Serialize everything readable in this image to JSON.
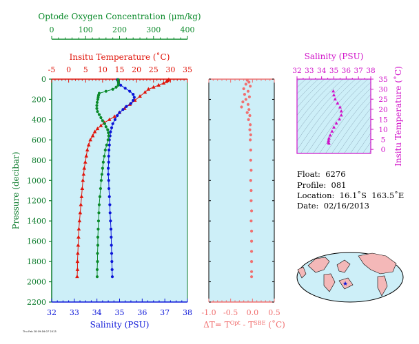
{
  "colors": {
    "oxygen": "#0a8a2a",
    "temperature": "#e0140a",
    "salinity": "#0a14d8",
    "delta": "#f07070",
    "pressure_axis": "#0a7a2a",
    "sal_panel": "#d010c8",
    "panel_bg": "#cdeff8"
  },
  "stamp": "Thu Feb 28 09:16:07 2013",
  "info": {
    "float": "Float:  6276",
    "profile": "Profile:  081",
    "location": "Location:  16.1˚S  163.5˚E",
    "date": "Date:  02/16/2013"
  },
  "chart_data": [
    {
      "type": "line",
      "panel": "main-profile",
      "y_axis": {
        "label": "Pressure (decibar)",
        "range": [
          2200,
          0
        ],
        "ticks": [
          0,
          200,
          400,
          600,
          800,
          1000,
          1200,
          1400,
          1600,
          1800,
          2000,
          2200
        ]
      },
      "oxygen_axis": {
        "label": "Optode Oxygen Concentration (μm/kg)",
        "range": [
          0,
          400
        ],
        "ticks": [
          0,
          100,
          200,
          300,
          400
        ]
      },
      "temperature_axis": {
        "label": "Insitu Temperature (˚C)",
        "range": [
          -5,
          35
        ],
        "ticks": [
          -5,
          0,
          5,
          10,
          15,
          20,
          25,
          30,
          35
        ]
      },
      "salinity_axis": {
        "label": "Salinity (PSU)",
        "range": [
          32,
          38
        ],
        "ticks": [
          32,
          33,
          34,
          35,
          36,
          37,
          38
        ]
      },
      "series": [
        {
          "quantity": "temperature",
          "unit": "˚C",
          "points": [
            [
              29.5,
              5
            ],
            [
              29.2,
              15
            ],
            [
              28.8,
              25
            ],
            [
              28,
              40
            ],
            [
              26.5,
              60
            ],
            [
              25,
              80
            ],
            [
              23.5,
              100
            ],
            [
              22.5,
              130
            ],
            [
              21,
              170
            ],
            [
              19.5,
              210
            ],
            [
              18,
              250
            ],
            [
              16.5,
              290
            ],
            [
              15,
              330
            ],
            [
              13.5,
              370
            ],
            [
              12,
              400
            ],
            [
              10.5,
              430
            ],
            [
              9.5,
              460
            ],
            [
              8.5,
              490
            ],
            [
              7.7,
              520
            ],
            [
              7.1,
              560
            ],
            [
              6.4,
              600
            ],
            [
              5.9,
              650
            ],
            [
              5.5,
              700
            ],
            [
              5.2,
              760
            ],
            [
              4.9,
              820
            ],
            [
              4.6,
              880
            ],
            [
              4.4,
              940
            ],
            [
              4.2,
              1000
            ],
            [
              4.0,
              1080
            ],
            [
              3.8,
              1160
            ],
            [
              3.6,
              1240
            ],
            [
              3.4,
              1320
            ],
            [
              3.2,
              1400
            ],
            [
              3.0,
              1480
            ],
            [
              2.9,
              1560
            ],
            [
              2.8,
              1640
            ],
            [
              2.7,
              1720
            ],
            [
              2.6,
              1800
            ],
            [
              2.6,
              1880
            ],
            [
              2.5,
              1950
            ]
          ]
        },
        {
          "quantity": "salinity",
          "unit": "PSU",
          "points": [
            [
              34.9,
              5
            ],
            [
              34.95,
              30
            ],
            [
              35.05,
              60
            ],
            [
              35.25,
              90
            ],
            [
              35.45,
              120
            ],
            [
              35.6,
              150
            ],
            [
              35.65,
              180
            ],
            [
              35.6,
              210
            ],
            [
              35.5,
              240
            ],
            [
              35.3,
              270
            ],
            [
              35.15,
              300
            ],
            [
              35.0,
              330
            ],
            [
              34.9,
              360
            ],
            [
              34.8,
              400
            ],
            [
              34.7,
              440
            ],
            [
              34.65,
              480
            ],
            [
              34.6,
              520
            ],
            [
              34.58,
              560
            ],
            [
              34.55,
              600
            ],
            [
              34.55,
              650
            ],
            [
              34.53,
              700
            ],
            [
              34.52,
              760
            ],
            [
              34.52,
              820
            ],
            [
              34.5,
              880
            ],
            [
              34.5,
              940
            ],
            [
              34.52,
              1000
            ],
            [
              34.53,
              1080
            ],
            [
              34.55,
              1160
            ],
            [
              34.57,
              1240
            ],
            [
              34.58,
              1320
            ],
            [
              34.6,
              1400
            ],
            [
              34.62,
              1480
            ],
            [
              34.63,
              1560
            ],
            [
              34.64,
              1640
            ],
            [
              34.65,
              1720
            ],
            [
              34.66,
              1800
            ],
            [
              34.67,
              1880
            ],
            [
              34.68,
              1950
            ]
          ]
        },
        {
          "quantity": "oxygen",
          "unit": "μm/kg",
          "points": [
            [
              196,
              5
            ],
            [
              196,
              20
            ],
            [
              197,
              40
            ],
            [
              196,
              60
            ],
            [
              190,
              80
            ],
            [
              180,
              100
            ],
            [
              160,
              120
            ],
            [
              140,
              140
            ],
            [
              138,
              160
            ],
            [
              137,
              180
            ],
            [
              136,
              200
            ],
            [
              134,
              230
            ],
            [
              133,
              260
            ],
            [
              133,
              290
            ],
            [
              135,
              320
            ],
            [
              140,
              350
            ],
            [
              145,
              380
            ],
            [
              150,
              410
            ],
            [
              156,
              440
            ],
            [
              160,
              470
            ],
            [
              165,
              500
            ],
            [
              167,
              530
            ],
            [
              168,
              560
            ],
            [
              166,
              600
            ],
            [
              162,
              650
            ],
            [
              158,
              700
            ],
            [
              155,
              760
            ],
            [
              152,
              820
            ],
            [
              150,
              880
            ],
            [
              148,
              940
            ],
            [
              146,
              1000
            ],
            [
              144,
              1080
            ],
            [
              142,
              1160
            ],
            [
              140,
              1240
            ],
            [
              139,
              1320
            ],
            [
              138,
              1400
            ],
            [
              137,
              1480
            ],
            [
              136,
              1560
            ],
            [
              136,
              1640
            ],
            [
              135,
              1720
            ],
            [
              135,
              1800
            ],
            [
              134,
              1880
            ],
            [
              134,
              1950
            ]
          ]
        }
      ]
    },
    {
      "type": "scatter",
      "panel": "delta-temperature",
      "xlabel": "ΔT= T^Opt - T^SBE (˚C)",
      "x_axis": {
        "range": [
          -1.0,
          0.5
        ],
        "ticks": [
          "-1.0",
          "-0.5",
          "0.0",
          "0.5"
        ]
      },
      "points": [
        [
          -0.12,
          10
        ],
        [
          -0.08,
          30
        ],
        [
          -0.15,
          50
        ],
        [
          -0.05,
          70
        ],
        [
          -0.2,
          95
        ],
        [
          -0.1,
          120
        ],
        [
          -0.18,
          150
        ],
        [
          -0.07,
          175
        ],
        [
          -0.15,
          200
        ],
        [
          -0.22,
          225
        ],
        [
          -0.1,
          250
        ],
        [
          -0.25,
          275
        ],
        [
          -0.08,
          300
        ],
        [
          -0.12,
          330
        ],
        [
          -0.06,
          360
        ],
        [
          -0.09,
          400
        ],
        [
          -0.05,
          450
        ],
        [
          -0.06,
          500
        ],
        [
          -0.04,
          550
        ],
        [
          -0.05,
          600
        ],
        [
          -0.04,
          700
        ],
        [
          -0.04,
          800
        ],
        [
          -0.03,
          900
        ],
        [
          -0.04,
          1000
        ],
        [
          -0.03,
          1100
        ],
        [
          -0.03,
          1200
        ],
        [
          -0.02,
          1300
        ],
        [
          -0.03,
          1400
        ],
        [
          -0.02,
          1500
        ],
        [
          -0.02,
          1600
        ],
        [
          -0.02,
          1700
        ],
        [
          -0.02,
          1800
        ],
        [
          -0.02,
          1900
        ],
        [
          -0.02,
          1950
        ]
      ]
    },
    {
      "type": "scatter",
      "panel": "ts-diagram",
      "xlabel": "Salinity (PSU)",
      "ylabel": "Insitu Temperature (˚C)",
      "x_axis": {
        "range": [
          32,
          38
        ],
        "ticks": [
          32,
          33,
          34,
          35,
          36,
          37,
          38
        ]
      },
      "y_axis": {
        "range": [
          -2,
          35
        ],
        "ticks": [
          0,
          5,
          10,
          15,
          20,
          25,
          30,
          35
        ]
      },
      "points": [
        [
          34.95,
          29
        ],
        [
          35.0,
          27
        ],
        [
          35.1,
          25
        ],
        [
          35.3,
          23
        ],
        [
          35.5,
          21
        ],
        [
          35.6,
          19
        ],
        [
          35.6,
          17
        ],
        [
          35.45,
          15
        ],
        [
          35.2,
          13
        ],
        [
          35.0,
          11
        ],
        [
          34.85,
          9
        ],
        [
          34.7,
          7
        ],
        [
          34.6,
          5.5
        ],
        [
          34.57,
          4.5
        ],
        [
          34.55,
          3.5
        ],
        [
          34.6,
          3
        ]
      ]
    }
  ]
}
